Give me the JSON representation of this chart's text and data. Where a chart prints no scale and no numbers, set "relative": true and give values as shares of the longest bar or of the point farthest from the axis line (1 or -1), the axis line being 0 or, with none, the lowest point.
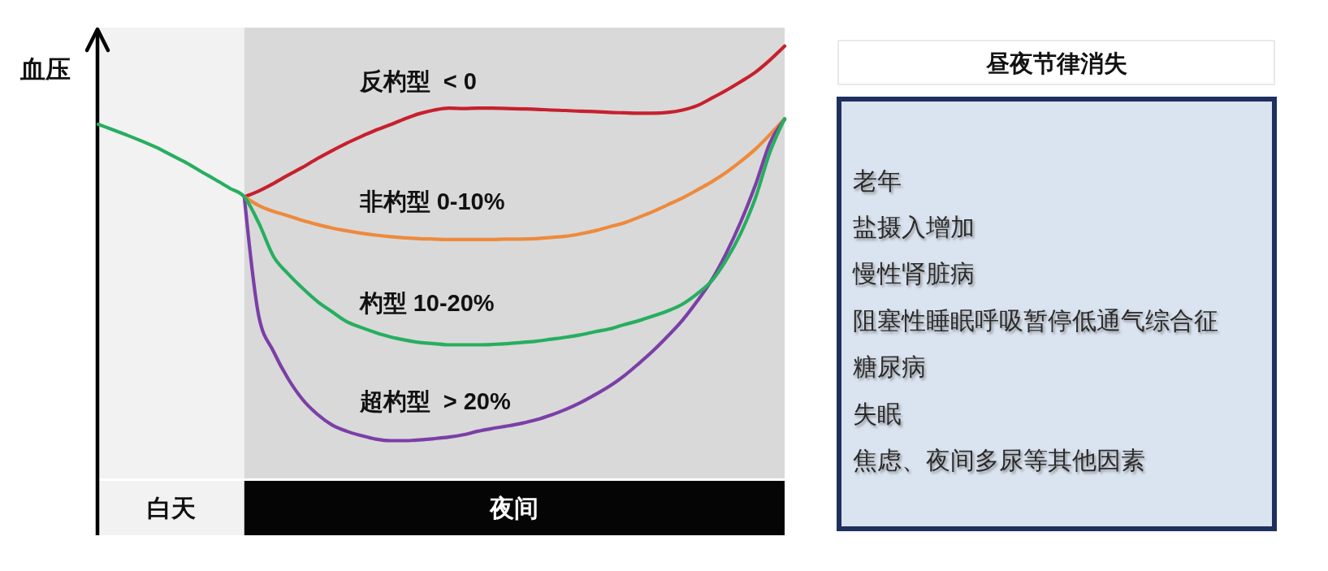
{
  "chart_data": [
    {
      "type": "line",
      "relative": true,
      "ylabel": "血压",
      "line_style": "solid",
      "annotations": [
        "白天",
        "夜间"
      ],
      "categories": [
        null,
        null,
        null,
        null,
        null,
        null,
        null,
        null,
        null,
        null,
        null,
        null,
        null,
        null,
        null,
        null,
        null,
        null,
        null,
        null,
        null,
        null,
        null,
        null,
        null,
        null,
        null,
        null,
        null,
        null,
        null,
        null,
        null,
        null,
        null,
        null,
        null,
        null,
        null,
        null,
        null,
        null,
        null,
        null,
        null,
        null,
        null,
        null
      ],
      "series": [
        {
          "name": "反杓型  < 0",
          "color": "#c7202d",
          "values": [
            null,
            null,
            null,
            null,
            null,
            null,
            null,
            null,
            null,
            null,
            0.618,
            0.633,
            0.652,
            0.673,
            0.693,
            0.715,
            0.735,
            0.754,
            0.771,
            0.787,
            0.801,
            0.816,
            0.829,
            0.838,
            0.843,
            0.842,
            0.843,
            0.843,
            0.842,
            0.841,
            0.84,
            0.838,
            0.837,
            0.835,
            0.834,
            0.832,
            0.831,
            0.83,
            0.83,
            0.832,
            0.838,
            0.849,
            0.868,
            0.888,
            0.91,
            0.934,
            0.965,
            1
          ]
        },
        {
          "name": "非杓型 0-10%",
          "color": "#ee8a3c",
          "values": [
            null,
            null,
            null,
            null,
            null,
            null,
            null,
            null,
            null,
            null,
            0.618,
            0.596,
            0.581,
            0.57,
            0.558,
            0.548,
            0.539,
            0.532,
            0.526,
            0.521,
            0.517,
            0.514,
            0.512,
            0.511,
            0.51,
            0.51,
            0.51,
            0.51,
            0.511,
            0.511,
            0.512,
            0.515,
            0.518,
            0.524,
            0.532,
            0.542,
            0.552,
            0.566,
            0.581,
            0.598,
            0.615,
            0.635,
            0.656,
            0.68,
            0.708,
            0.739,
            0.776,
            0.816
          ]
        },
        {
          "name": "超杓型  > 20%",
          "color": "#7b3fa6",
          "values": [
            null,
            null,
            null,
            null,
            null,
            null,
            null,
            null,
            null,
            null,
            0.618,
            0.314,
            0.226,
            0.157,
            0.104,
            0.067,
            0.04,
            0.024,
            0.013,
            0.004,
            0,
            0,
            0.002,
            0.005,
            0.009,
            0.015,
            0.024,
            0.031,
            0.037,
            0.044,
            0.053,
            0.065,
            0.079,
            0.096,
            0.116,
            0.138,
            0.164,
            0.195,
            0.228,
            0.265,
            0.305,
            0.353,
            0.407,
            0.475,
            0.555,
            0.648,
            0.755,
            0.814
          ]
        },
        {
          "name": "杓型 10-20%",
          "color": "#27ae60",
          "values": [
            0.802,
            0.788,
            0.774,
            0.759,
            0.743,
            0.724,
            0.705,
            0.683,
            0.662,
            0.64,
            0.618,
            0.551,
            0.467,
            0.423,
            0.386,
            0.353,
            0.327,
            0.302,
            0.287,
            0.274,
            0.263,
            0.255,
            0.249,
            0.246,
            0.243,
            0.243,
            0.243,
            0.244,
            0.246,
            0.249,
            0.252,
            0.257,
            0.262,
            0.268,
            0.276,
            0.283,
            0.294,
            0.304,
            0.316,
            0.329,
            0.346,
            0.372,
            0.405,
            0.458,
            0.526,
            0.615,
            0.732,
            0.816
          ]
        }
      ]
    },
    {
      "type": "other",
      "title": "昼夜节律消失",
      "annotations": [
        "老年",
        "盐摄入增加",
        "慢性肾脏病",
        "阻塞性睡眠呼吸暂停低通气综合征",
        "糖尿病",
        "失眠",
        "焦虑、夜间多尿等其他因素"
      ]
    }
  ]
}
